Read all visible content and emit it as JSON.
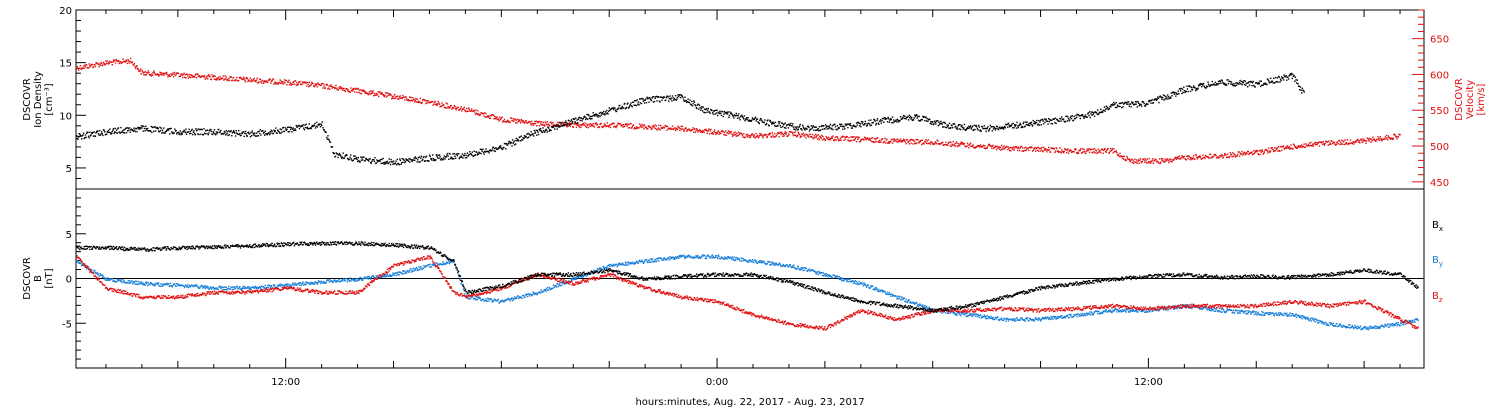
{
  "colors": {
    "black": "#000000",
    "red": "#e01010",
    "blue": "#1a7fd8"
  },
  "chart_data": [
    {
      "type": "scatter",
      "panel": "top",
      "xlabel": "hours:minutes, Aug. 22, 2017 - Aug. 23, 2017",
      "x_ticks": [
        "12:00",
        "0:00",
        "12:00"
      ],
      "xlim": [
        "2017-08-22 06:10",
        "2017-08-23 19:40"
      ],
      "left_axis": {
        "ylabel_lines": [
          "DSCOVR",
          "Ion Density",
          "[cm⁻³]"
        ],
        "ylim": [
          3,
          20
        ],
        "ticks": [
          5,
          10,
          15,
          20
        ]
      },
      "right_axis": {
        "ylabel_lines": [
          "DSCOVR",
          "Velocity",
          "[km/s]"
        ],
        "ylim": [
          440,
          690
        ],
        "ticks": [
          450,
          500,
          550,
          600,
          650
        ]
      },
      "series": [
        {
          "axis": "left",
          "color": "#000000",
          "points": [
            [
              "2017-08-22 06:10",
              8.0
            ],
            [
              "2017-08-22 07:00",
              8.5
            ],
            [
              "2017-08-22 08:00",
              8.8
            ],
            [
              "2017-08-22 09:00",
              8.5
            ],
            [
              "2017-08-22 10:00",
              8.5
            ],
            [
              "2017-08-22 11:00",
              8.3
            ],
            [
              "2017-08-22 12:00",
              8.7
            ],
            [
              "2017-08-22 13:00",
              9.2
            ],
            [
              "2017-08-22 13:20",
              6.4
            ],
            [
              "2017-08-22 14:00",
              5.9
            ],
            [
              "2017-08-22 15:00",
              5.6
            ],
            [
              "2017-08-22 16:00",
              6.0
            ],
            [
              "2017-08-22 17:00",
              6.3
            ],
            [
              "2017-08-22 18:00",
              7.0
            ],
            [
              "2017-08-22 19:00",
              8.5
            ],
            [
              "2017-08-22 20:00",
              9.5
            ],
            [
              "2017-08-22 21:00",
              10.5
            ],
            [
              "2017-08-22 22:00",
              11.5
            ],
            [
              "2017-08-22 23:00",
              11.8
            ],
            [
              "2017-08-22 23:40",
              10.5
            ],
            [
              "2017-08-23 00:30",
              10.0
            ],
            [
              "2017-08-23 01:30",
              9.3
            ],
            [
              "2017-08-23 02:30",
              8.8
            ],
            [
              "2017-08-23 03:30",
              9.0
            ],
            [
              "2017-08-23 04:30",
              9.5
            ],
            [
              "2017-08-23 05:30",
              9.9
            ],
            [
              "2017-08-23 06:30",
              9.0
            ],
            [
              "2017-08-23 07:30",
              8.8
            ],
            [
              "2017-08-23 08:30",
              9.2
            ],
            [
              "2017-08-23 09:30",
              9.6
            ],
            [
              "2017-08-23 10:30",
              10.2
            ],
            [
              "2017-08-23 11:00",
              11.0
            ],
            [
              "2017-08-23 12:00",
              11.2
            ],
            [
              "2017-08-23 13:00",
              12.5
            ],
            [
              "2017-08-23 14:00",
              13.2
            ],
            [
              "2017-08-23 15:00",
              13.0
            ],
            [
              "2017-08-23 16:00",
              13.8
            ],
            [
              "2017-08-23 16:20",
              12.0
            ]
          ]
        },
        {
          "axis": "right",
          "color": "#e01010",
          "points": [
            [
              "2017-08-22 06:10",
              610
            ],
            [
              "2017-08-22 07:00",
              617
            ],
            [
              "2017-08-22 07:40",
              620
            ],
            [
              "2017-08-22 08:00",
              603
            ],
            [
              "2017-08-22 09:00",
              600
            ],
            [
              "2017-08-22 10:00",
              597
            ],
            [
              "2017-08-22 11:00",
              593
            ],
            [
              "2017-08-22 12:00",
              590
            ],
            [
              "2017-08-22 13:00",
              585
            ],
            [
              "2017-08-22 14:00",
              578
            ],
            [
              "2017-08-22 15:00",
              570
            ],
            [
              "2017-08-22 16:00",
              562
            ],
            [
              "2017-08-22 17:00",
              552
            ],
            [
              "2017-08-22 18:00",
              538
            ],
            [
              "2017-08-22 19:00",
              532
            ],
            [
              "2017-08-22 20:00",
              530
            ],
            [
              "2017-08-22 21:00",
              530
            ],
            [
              "2017-08-22 22:00",
              528
            ],
            [
              "2017-08-22 23:00",
              525
            ],
            [
              "2017-08-23 00:00",
              520
            ],
            [
              "2017-08-23 01:00",
              515
            ],
            [
              "2017-08-23 02:00",
              518
            ],
            [
              "2017-08-23 03:00",
              512
            ],
            [
              "2017-08-23 04:00",
              510
            ],
            [
              "2017-08-23 05:00",
              508
            ],
            [
              "2017-08-23 06:00",
              506
            ],
            [
              "2017-08-23 07:00",
              502
            ],
            [
              "2017-08-23 08:00",
              498
            ],
            [
              "2017-08-23 09:00",
              496
            ],
            [
              "2017-08-23 10:00",
              494
            ],
            [
              "2017-08-23 11:00",
              494
            ],
            [
              "2017-08-23 11:30",
              480
            ],
            [
              "2017-08-23 12:30",
              480
            ],
            [
              "2017-08-23 13:00",
              485
            ],
            [
              "2017-08-23 14:00",
              487
            ],
            [
              "2017-08-23 15:00",
              492
            ],
            [
              "2017-08-23 16:00",
              500
            ],
            [
              "2017-08-23 17:00",
              505
            ],
            [
              "2017-08-23 18:00",
              508
            ],
            [
              "2017-08-23 18:30",
              512
            ],
            [
              "2017-08-23 19:00",
              515
            ]
          ]
        }
      ]
    },
    {
      "type": "scatter",
      "panel": "bottom",
      "xlabel": "hours:minutes, Aug. 22, 2017 - Aug. 23, 2017",
      "x_ticks": [
        "12:00",
        "0:00",
        "12:00"
      ],
      "ylabel_lines": [
        "DSCOVR",
        "B",
        "[nT]"
      ],
      "ylim": [
        -10,
        10
      ],
      "ticks": [
        -5,
        0,
        5
      ],
      "zero_line": true,
      "series": [
        {
          "name": "Bx",
          "color": "#000000",
          "points": [
            [
              "2017-08-22 06:10",
              3.5
            ],
            [
              "2017-08-22 07:00",
              3.5
            ],
            [
              "2017-08-22 08:00",
              3.3
            ],
            [
              "2017-08-22 09:00",
              3.5
            ],
            [
              "2017-08-22 10:00",
              3.6
            ],
            [
              "2017-08-22 11:00",
              3.7
            ],
            [
              "2017-08-22 12:00",
              3.9
            ],
            [
              "2017-08-22 13:00",
              4.0
            ],
            [
              "2017-08-22 14:00",
              4.0
            ],
            [
              "2017-08-22 15:00",
              3.8
            ],
            [
              "2017-08-22 16:00",
              3.5
            ],
            [
              "2017-08-22 16:40",
              2.0
            ],
            [
              "2017-08-22 17:00",
              -1.5
            ],
            [
              "2017-08-22 18:00",
              -0.8
            ],
            [
              "2017-08-22 19:00",
              0.5
            ],
            [
              "2017-08-22 20:00",
              0.5
            ],
            [
              "2017-08-22 21:00",
              1.0
            ],
            [
              "2017-08-22 22:00",
              0.0
            ],
            [
              "2017-08-22 23:00",
              0.3
            ],
            [
              "2017-08-23 00:00",
              0.5
            ],
            [
              "2017-08-23 01:00",
              0.5
            ],
            [
              "2017-08-23 02:00",
              -0.3
            ],
            [
              "2017-08-23 03:00",
              -1.5
            ],
            [
              "2017-08-23 04:00",
              -2.5
            ],
            [
              "2017-08-23 05:00",
              -3.0
            ],
            [
              "2017-08-23 06:00",
              -3.5
            ],
            [
              "2017-08-23 07:00",
              -3.0
            ],
            [
              "2017-08-23 08:00",
              -2.0
            ],
            [
              "2017-08-23 09:00",
              -1.0
            ],
            [
              "2017-08-23 10:00",
              -0.5
            ],
            [
              "2017-08-23 11:00",
              0.0
            ],
            [
              "2017-08-23 12:00",
              0.3
            ],
            [
              "2017-08-23 13:00",
              0.5
            ],
            [
              "2017-08-23 14:00",
              0.2
            ],
            [
              "2017-08-23 15:00",
              0.3
            ],
            [
              "2017-08-23 16:00",
              0.2
            ],
            [
              "2017-08-23 17:00",
              0.5
            ],
            [
              "2017-08-23 18:00",
              1.0
            ],
            [
              "2017-08-23 19:00",
              0.5
            ],
            [
              "2017-08-23 19:30",
              -1.0
            ]
          ]
        },
        {
          "name": "By",
          "color": "#1a7fd8",
          "points": [
            [
              "2017-08-22 06:10",
              2.0
            ],
            [
              "2017-08-22 07:00",
              0.0
            ],
            [
              "2017-08-22 08:00",
              -0.5
            ],
            [
              "2017-08-22 09:00",
              -0.7
            ],
            [
              "2017-08-22 10:00",
              -1.0
            ],
            [
              "2017-08-22 11:00",
              -1.0
            ],
            [
              "2017-08-22 12:00",
              -0.7
            ],
            [
              "2017-08-22 13:00",
              -0.3
            ],
            [
              "2017-08-22 14:00",
              0.0
            ],
            [
              "2017-08-22 15:00",
              0.5
            ],
            [
              "2017-08-22 16:00",
              1.5
            ],
            [
              "2017-08-22 16:40",
              2.0
            ],
            [
              "2017-08-22 17:00",
              -2.0
            ],
            [
              "2017-08-22 18:00",
              -2.5
            ],
            [
              "2017-08-22 19:00",
              -1.5
            ],
            [
              "2017-08-22 20:00",
              0.0
            ],
            [
              "2017-08-22 21:00",
              1.5
            ],
            [
              "2017-08-22 22:00",
              2.0
            ],
            [
              "2017-08-22 23:00",
              2.5
            ],
            [
              "2017-08-23 00:00",
              2.5
            ],
            [
              "2017-08-23 01:00",
              2.0
            ],
            [
              "2017-08-23 02:00",
              1.5
            ],
            [
              "2017-08-23 03:00",
              0.5
            ],
            [
              "2017-08-23 04:00",
              -0.5
            ],
            [
              "2017-08-23 05:00",
              -2.0
            ],
            [
              "2017-08-23 06:00",
              -3.5
            ],
            [
              "2017-08-23 07:00",
              -4.0
            ],
            [
              "2017-08-23 08:00",
              -4.5
            ],
            [
              "2017-08-23 09:00",
              -4.5
            ],
            [
              "2017-08-23 10:00",
              -4.0
            ],
            [
              "2017-08-23 11:00",
              -3.5
            ],
            [
              "2017-08-23 12:00",
              -3.5
            ],
            [
              "2017-08-23 13:00",
              -3.0
            ],
            [
              "2017-08-23 14:00",
              -3.5
            ],
            [
              "2017-08-23 15:00",
              -3.8
            ],
            [
              "2017-08-23 16:00",
              -4.0
            ],
            [
              "2017-08-23 17:00",
              -5.0
            ],
            [
              "2017-08-23 18:00",
              -5.5
            ],
            [
              "2017-08-23 19:00",
              -5.0
            ],
            [
              "2017-08-23 19:30",
              -4.5
            ]
          ]
        },
        {
          "name": "Bz",
          "color": "#e01010",
          "points": [
            [
              "2017-08-22 06:10",
              2.5
            ],
            [
              "2017-08-22 07:00",
              -1.0
            ],
            [
              "2017-08-22 08:00",
              -2.0
            ],
            [
              "2017-08-22 09:00",
              -2.0
            ],
            [
              "2017-08-22 10:00",
              -1.5
            ],
            [
              "2017-08-22 11:00",
              -1.5
            ],
            [
              "2017-08-22 12:00",
              -1.0
            ],
            [
              "2017-08-22 13:00",
              -1.5
            ],
            [
              "2017-08-22 14:00",
              -1.5
            ],
            [
              "2017-08-22 15:00",
              1.5
            ],
            [
              "2017-08-22 16:00",
              2.5
            ],
            [
              "2017-08-22 16:40",
              -1.5
            ],
            [
              "2017-08-22 17:00",
              -2.0
            ],
            [
              "2017-08-22 18:00",
              -1.0
            ],
            [
              "2017-08-22 19:00",
              0.5
            ],
            [
              "2017-08-22 20:00",
              -0.5
            ],
            [
              "2017-08-22 21:00",
              0.5
            ],
            [
              "2017-08-22 22:00",
              -1.0
            ],
            [
              "2017-08-22 23:00",
              -2.0
            ],
            [
              "2017-08-23 00:00",
              -2.5
            ],
            [
              "2017-08-23 01:00",
              -4.0
            ],
            [
              "2017-08-23 02:00",
              -5.0
            ],
            [
              "2017-08-23 03:00",
              -5.5
            ],
            [
              "2017-08-23 04:00",
              -3.5
            ],
            [
              "2017-08-23 05:00",
              -4.5
            ],
            [
              "2017-08-23 06:00",
              -3.5
            ],
            [
              "2017-08-23 07:00",
              -3.5
            ],
            [
              "2017-08-23 08:00",
              -3.3
            ],
            [
              "2017-08-23 09:00",
              -3.5
            ],
            [
              "2017-08-23 10:00",
              -3.3
            ],
            [
              "2017-08-23 11:00",
              -3.0
            ],
            [
              "2017-08-23 12:00",
              -3.3
            ],
            [
              "2017-08-23 13:00",
              -3.0
            ],
            [
              "2017-08-23 14:00",
              -3.0
            ],
            [
              "2017-08-23 15:00",
              -3.0
            ],
            [
              "2017-08-23 16:00",
              -2.5
            ],
            [
              "2017-08-23 17:00",
              -3.0
            ],
            [
              "2017-08-23 18:00",
              -2.5
            ],
            [
              "2017-08-23 19:00",
              -4.5
            ],
            [
              "2017-08-23 19:30",
              -5.5
            ]
          ]
        }
      ],
      "legend": {
        "position": "right",
        "items": [
          {
            "label": "B",
            "sub": "x",
            "color": "#000000"
          },
          {
            "label": "B",
            "sub": "y",
            "color": "#1a7fd8"
          },
          {
            "label": "B",
            "sub": "z",
            "color": "#e01010"
          }
        ]
      }
    }
  ]
}
